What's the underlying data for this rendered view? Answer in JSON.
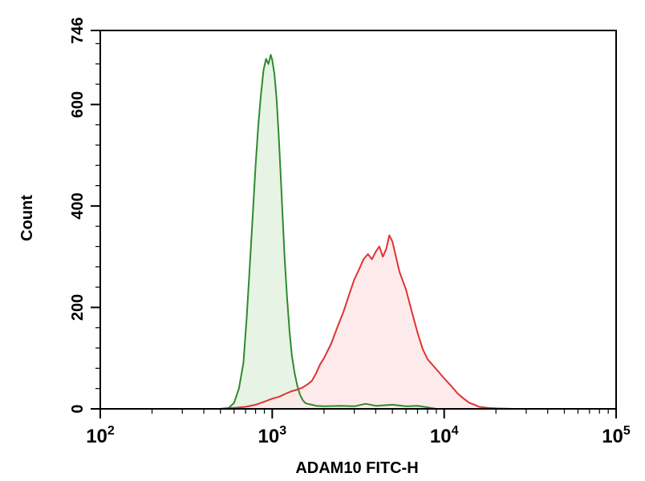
{
  "chart_data": {
    "type": "area",
    "xlabel": "ADAM10 FITC-H",
    "ylabel": "Count",
    "x_scale": "log",
    "xlim": [
      100,
      100000
    ],
    "ylim": [
      0,
      746
    ],
    "x_tick_labels": [
      {
        "base": "10",
        "exp": "2",
        "value": 100
      },
      {
        "base": "10",
        "exp": "3",
        "value": 1000
      },
      {
        "base": "10",
        "exp": "4",
        "value": 10000
      },
      {
        "base": "10",
        "exp": "5",
        "value": 100000
      }
    ],
    "y_ticks": [
      0,
      200,
      400,
      600,
      746
    ],
    "y_tick_labels": [
      "0",
      "200",
      "400",
      "600",
      "746"
    ],
    "grid": false,
    "legend": "none",
    "series": [
      {
        "color": "#2e8b2e",
        "fill": "#e3f1e1",
        "x": [
          500,
          560,
          600,
          640,
          680,
          710,
          740,
          770,
          800,
          830,
          860,
          890,
          920,
          950,
          980,
          1000,
          1030,
          1060,
          1090,
          1120,
          1150,
          1180,
          1220,
          1260,
          1300,
          1350,
          1400,
          1450,
          1500,
          1550,
          1600,
          1700,
          1800,
          2000,
          2500,
          3000,
          3500,
          4000,
          5000,
          6000,
          7000,
          8000,
          9000
        ],
        "y": [
          0,
          2,
          12,
          40,
          90,
          180,
          280,
          380,
          480,
          560,
          620,
          668,
          690,
          680,
          698,
          688,
          660,
          610,
          540,
          460,
          380,
          300,
          220,
          155,
          105,
          70,
          45,
          28,
          18,
          12,
          10,
          8,
          6,
          5,
          6,
          5,
          10,
          6,
          8,
          5,
          6,
          3,
          0
        ]
      },
      {
        "color": "#e03232",
        "fill": "#fde7e7",
        "x": [
          500,
          600,
          700,
          800,
          900,
          1000,
          1100,
          1200,
          1300,
          1400,
          1500,
          1600,
          1700,
          1800,
          1900,
          2000,
          2200,
          2400,
          2600,
          2800,
          3000,
          3200,
          3400,
          3600,
          3800,
          4000,
          4200,
          4400,
          4600,
          4800,
          5000,
          5200,
          5500,
          6000,
          6500,
          7000,
          7500,
          8000,
          9000,
          10000,
          11000,
          12000,
          13000,
          14000,
          15000,
          16000,
          18000,
          20000,
          25000,
          30000
        ],
        "y": [
          0,
          2,
          4,
          8,
          14,
          20,
          24,
          30,
          35,
          38,
          42,
          48,
          55,
          70,
          88,
          100,
          128,
          162,
          192,
          225,
          255,
          275,
          295,
          305,
          295,
          310,
          320,
          300,
          315,
          342,
          330,
          305,
          270,
          235,
          190,
          150,
          118,
          98,
          78,
          60,
          45,
          30,
          20,
          12,
          8,
          4,
          2,
          1,
          0,
          0
        ]
      }
    ]
  }
}
